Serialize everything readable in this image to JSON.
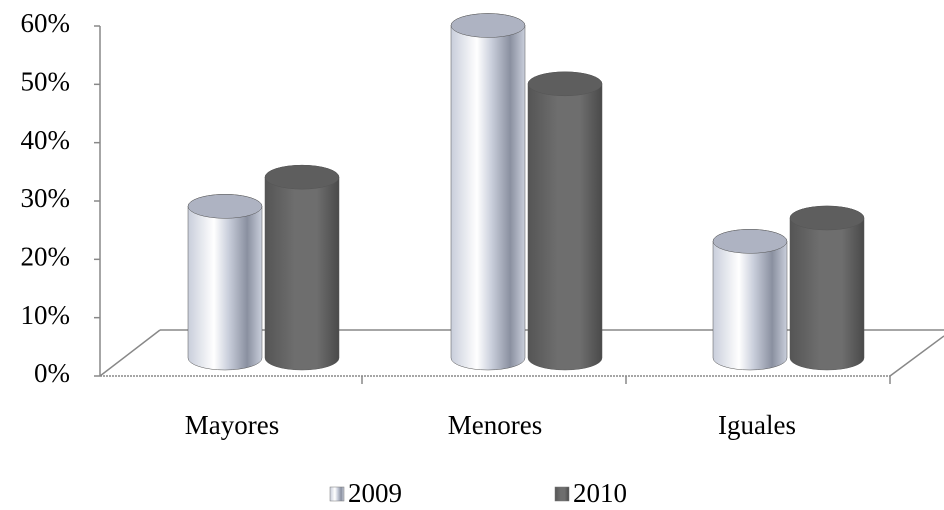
{
  "chart_data": {
    "type": "cylinder-bar",
    "categories": [
      "Mayores",
      "Menores",
      "Iguales"
    ],
    "series": [
      {
        "name": "2009",
        "color": "#c9cedb",
        "values": [
          26,
          57,
          20
        ]
      },
      {
        "name": "2010",
        "color": "#6e6e6e",
        "values": [
          31,
          47,
          24
        ]
      }
    ],
    "ylim": [
      0,
      60
    ],
    "yticks": [
      {
        "value": 0,
        "label": "0%"
      },
      {
        "value": 10,
        "label": "10%"
      },
      {
        "value": 20,
        "label": "20%"
      },
      {
        "value": 30,
        "label": "30%"
      },
      {
        "value": 40,
        "label": "40%"
      },
      {
        "value": 50,
        "label": "50%"
      },
      {
        "value": 60,
        "label": "60%"
      }
    ],
    "legend": "bottom"
  }
}
